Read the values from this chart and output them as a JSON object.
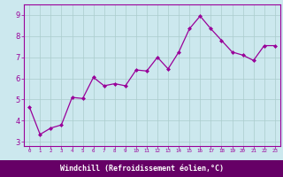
{
  "x": [
    0,
    1,
    2,
    3,
    4,
    5,
    6,
    7,
    8,
    9,
    10,
    11,
    12,
    13,
    14,
    15,
    16,
    17,
    18,
    19,
    20,
    21,
    22,
    23
  ],
  "y": [
    4.65,
    3.35,
    3.65,
    3.8,
    5.1,
    5.05,
    6.05,
    5.65,
    5.75,
    5.65,
    6.4,
    6.35,
    7.0,
    6.45,
    7.25,
    8.35,
    8.95,
    8.35,
    7.8,
    7.25,
    7.1,
    6.85,
    7.55,
    7.55
  ],
  "line_color": "#990099",
  "marker": "D",
  "marker_size": 2.0,
  "bg_color": "#cce8ee",
  "grid_color": "#aacccc",
  "xlabel": "Windchill (Refroidissement éolien,°C)",
  "xlabel_color": "#990099",
  "tick_color": "#990099",
  "xlim": [
    -0.5,
    23.5
  ],
  "ylim": [
    2.8,
    9.5
  ],
  "yticks": [
    3,
    4,
    5,
    6,
    7,
    8,
    9
  ],
  "xticks": [
    0,
    1,
    2,
    3,
    4,
    5,
    6,
    7,
    8,
    9,
    10,
    11,
    12,
    13,
    14,
    15,
    16,
    17,
    18,
    19,
    20,
    21,
    22,
    23
  ],
  "spine_color": "#990099",
  "xlabel_bg": "#660066",
  "xlabel_fontsize": 6.0,
  "ytick_fontsize": 6.0,
  "xtick_fontsize": 4.2,
  "linewidth": 0.9
}
